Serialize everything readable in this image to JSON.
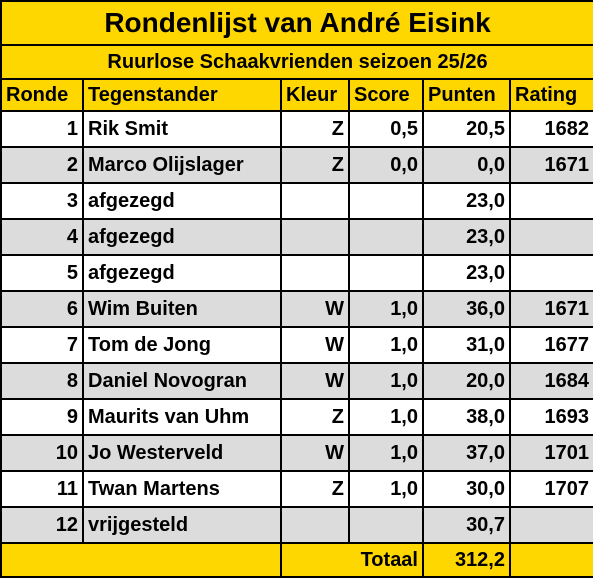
{
  "title": "Rondenlijst van André Eisink",
  "subtitle": "Ruurlose Schaakvrienden seizoen 25/26",
  "headers": {
    "ronde": "Ronde",
    "tegenstander": "Tegenstander",
    "kleur": "Kleur",
    "score": "Score",
    "punten": "Punten",
    "rating": "Rating"
  },
  "rows": [
    {
      "ronde": "1",
      "tegenstander": "Rik Smit",
      "kleur": "Z",
      "score": "0,5",
      "punten": "20,5",
      "rating": "1682"
    },
    {
      "ronde": "2",
      "tegenstander": "Marco Olijslager",
      "kleur": "Z",
      "score": "0,0",
      "punten": "0,0",
      "rating": "1671"
    },
    {
      "ronde": "3",
      "tegenstander": "afgezegd",
      "kleur": "",
      "score": "",
      "punten": "23,0",
      "rating": ""
    },
    {
      "ronde": "4",
      "tegenstander": "afgezegd",
      "kleur": "",
      "score": "",
      "punten": "23,0",
      "rating": ""
    },
    {
      "ronde": "5",
      "tegenstander": "afgezegd",
      "kleur": "",
      "score": "",
      "punten": "23,0",
      "rating": ""
    },
    {
      "ronde": "6",
      "tegenstander": "Wim Buiten",
      "kleur": "W",
      "score": "1,0",
      "punten": "36,0",
      "rating": "1671"
    },
    {
      "ronde": "7",
      "tegenstander": "Tom de Jong",
      "kleur": "W",
      "score": "1,0",
      "punten": "31,0",
      "rating": "1677"
    },
    {
      "ronde": "8",
      "tegenstander": "Daniel Novogran",
      "kleur": "W",
      "score": "1,0",
      "punten": "20,0",
      "rating": "1684"
    },
    {
      "ronde": "9",
      "tegenstander": "Maurits van Uhm",
      "kleur": "Z",
      "score": "1,0",
      "punten": "38,0",
      "rating": "1693"
    },
    {
      "ronde": "10",
      "tegenstander": "Jo Westerveld",
      "kleur": "W",
      "score": "1,0",
      "punten": "37,0",
      "rating": "1701"
    },
    {
      "ronde": "11",
      "tegenstander": "Twan Martens",
      "kleur": "Z",
      "score": "1,0",
      "punten": "30,0",
      "rating": "1707"
    },
    {
      "ronde": "12",
      "tegenstander": "vrijgesteld",
      "kleur": "",
      "score": "",
      "punten": "30,7",
      "rating": ""
    }
  ],
  "total": {
    "label": "Totaal",
    "value": "312,2"
  },
  "colors": {
    "header_bg": "#ffd700",
    "alt_row_bg": "#dcdcdc",
    "row_bg": "#ffffff",
    "border": "#000000"
  }
}
